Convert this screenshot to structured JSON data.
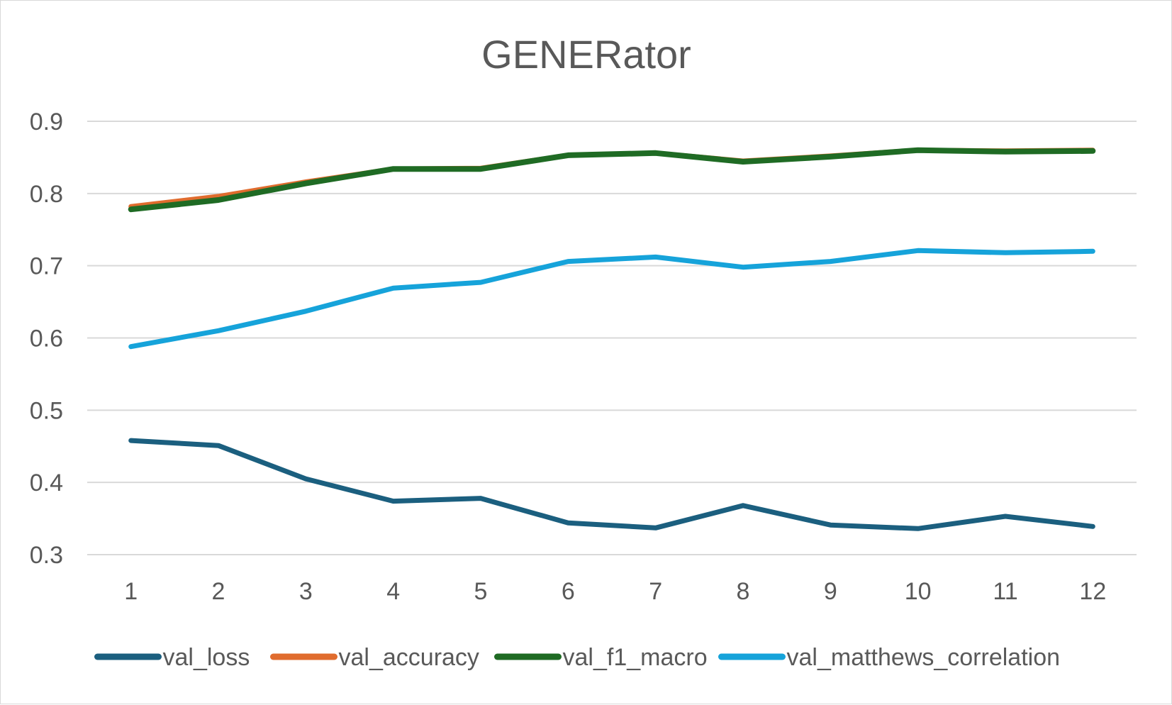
{
  "chart_data": {
    "type": "line",
    "title": "GENERator",
    "xlabel": "",
    "ylabel": "",
    "categories": [
      "1",
      "2",
      "3",
      "4",
      "5",
      "6",
      "7",
      "8",
      "9",
      "10",
      "11",
      "12"
    ],
    "ylim": [
      0.3,
      0.9
    ],
    "yticks": [
      "0.3",
      "0.4",
      "0.5",
      "0.6",
      "0.7",
      "0.8",
      "0.9"
    ],
    "grid": true,
    "legend_position": "bottom",
    "series": [
      {
        "name": "val_loss",
        "color": "#1b5f7f",
        "values": [
          0.458,
          0.451,
          0.405,
          0.374,
          0.378,
          0.344,
          0.337,
          0.368,
          0.341,
          0.336,
          0.353,
          0.339
        ]
      },
      {
        "name": "val_accuracy",
        "color": "#e06c2e",
        "values": [
          0.782,
          0.796,
          0.816,
          0.834,
          0.835,
          0.853,
          0.856,
          0.845,
          0.852,
          0.86,
          0.859,
          0.86
        ]
      },
      {
        "name": "val_f1_macro",
        "color": "#1f6b24",
        "values": [
          0.778,
          0.791,
          0.814,
          0.834,
          0.834,
          0.853,
          0.856,
          0.844,
          0.851,
          0.86,
          0.858,
          0.859
        ]
      },
      {
        "name": "val_matthews_correlation",
        "color": "#16a3da",
        "values": [
          0.588,
          0.61,
          0.637,
          0.669,
          0.677,
          0.706,
          0.712,
          0.698,
          0.706,
          0.721,
          0.718,
          0.72
        ]
      }
    ]
  }
}
